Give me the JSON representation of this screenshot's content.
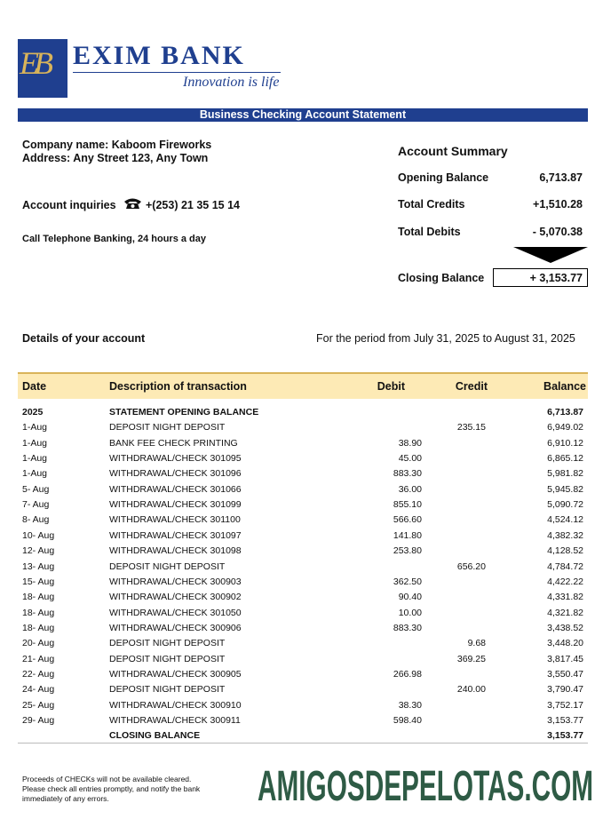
{
  "header": {
    "logo_initials": "EB",
    "bank_name": "EXIM BANK",
    "tagline": "Innovation is life"
  },
  "banner": "Business Checking Account Statement",
  "customer": {
    "company": "Company name: Kaboom Fireworks",
    "address": "Address: Any Street 123, Any Town",
    "inquiries_label": "Account inquiries",
    "phone": "+(253) 21 35 15 14",
    "telephone_banking": "Call Telephone Banking, 24 hours a day"
  },
  "summary": {
    "title": "Account Summary",
    "rows": [
      {
        "label": "Opening Balance",
        "value": "6,713.87"
      },
      {
        "label": "Total Credits",
        "value": "+1,510.28"
      },
      {
        "label": "Total Debits",
        "value": "- 5,070.38"
      },
      {
        "label": "Closing Balance",
        "value": "+ 3,153.77"
      }
    ]
  },
  "details": {
    "label": "Details of your account",
    "period": "For the period from July 31, 2025 to August 31, 2025"
  },
  "table": {
    "columns": [
      "Date",
      "Description of transaction",
      "Debit",
      "Credit",
      "Balance"
    ],
    "rows": [
      {
        "date": "2025",
        "description": "STATEMENT OPENING BALANCE",
        "balance": "6,713.87"
      },
      {
        "date": "1-Aug",
        "description": "DEPOSIT NIGHT DEPOSIT",
        "credit": "235.15",
        "balance": "6,949.02"
      },
      {
        "date": "1-Aug",
        "description": "BANK FEE CHECK PRINTING",
        "debit": "38.90",
        "balance": "6,910.12"
      },
      {
        "date": "1-Aug",
        "description": "WITHDRAWAL/CHECK 301095",
        "debit": "45.00",
        "balance": "6,865.12"
      },
      {
        "date": "1-Aug",
        "description": "WITHDRAWAL/CHECK 301096",
        "debit": "883.30",
        "balance": "5,981.82"
      },
      {
        "date": "5- Aug",
        "description": "WITHDRAWAL/CHECK 301066",
        "debit": "36.00",
        "balance": "5,945.82"
      },
      {
        "date": "7- Aug",
        "description": "WITHDRAWAL/CHECK 301099",
        "debit": "855.10",
        "balance": "5,090.72"
      },
      {
        "date": "8- Aug",
        "description": "WITHDRAWAL/CHECK 301100",
        "debit": "566.60",
        "balance": "4,524.12"
      },
      {
        "date": "10- Aug",
        "description": "WITHDRAWAL/CHECK 301097",
        "debit": "141.80",
        "balance": "4,382.32"
      },
      {
        "date": "12- Aug",
        "description": "WITHDRAWAL/CHECK 301098",
        "debit": "253.80",
        "balance": "4,128.52"
      },
      {
        "date": "13- Aug",
        "description": "DEPOSIT NIGHT DEPOSIT",
        "credit": "656.20",
        "balance": "4,784.72"
      },
      {
        "date": "15- Aug",
        "description": "WITHDRAWAL/CHECK 300903",
        "debit": "362.50",
        "balance": "4,422.22"
      },
      {
        "date": "18- Aug",
        "description": "WITHDRAWAL/CHECK 300902",
        "debit": "90.40",
        "balance": "4,331.82"
      },
      {
        "date": "18- Aug",
        "description": "WITHDRAWAL/CHECK 301050",
        "debit": "10.00",
        "balance": "4,321.82"
      },
      {
        "date": "18- Aug",
        "description": "WITHDRAWAL/CHECK 300906",
        "debit": "883.30",
        "balance": "3,438.52"
      },
      {
        "date": "20- Aug",
        "description": "DEPOSIT NIGHT DEPOSIT",
        "credit": "9.68",
        "balance": "3,448.20"
      },
      {
        "date": "21- Aug",
        "description": "DEPOSIT NIGHT DEPOSIT",
        "credit": "369.25",
        "balance": "3,817.45"
      },
      {
        "date": "22- Aug",
        "description": "WITHDRAWAL/CHECK 300905",
        "debit": "266.98",
        "balance": "3,550.47"
      },
      {
        "date": "24- Aug",
        "description": "DEPOSIT NIGHT DEPOSIT",
        "credit": "240.00",
        "balance": "3,790.47"
      },
      {
        "date": "25- Aug",
        "description": "WITHDRAWAL/CHECK 300910",
        "debit": "38.30",
        "balance": "3,752.17"
      },
      {
        "date": "29- Aug",
        "description": "WITHDRAWAL/CHECK 300911",
        "debit": "598.40",
        "balance": "3,153.77"
      },
      {
        "description": "CLOSING BALANCE",
        "balance": "3,153.77"
      }
    ]
  },
  "footer": {
    "note": "Proceeds of CHECKs will not be available cleared. Please check all entries promptly, and notify the bank immediately of any errors.",
    "watermark": "AMIGOSDEPELOTAS.COM"
  }
}
